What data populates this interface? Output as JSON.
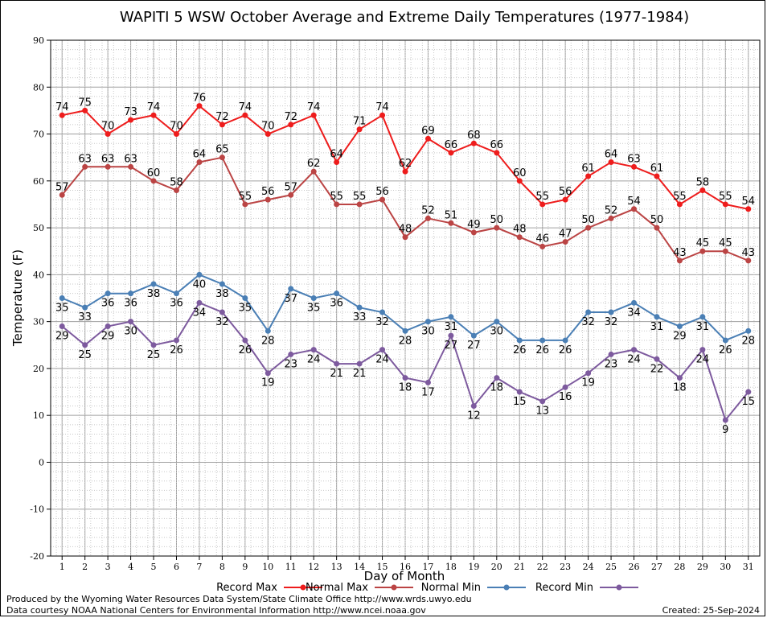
{
  "chart_data": {
    "type": "line",
    "title": "WAPITI 5 WSW October Average and Extreme Daily Temperatures (1977-1984)",
    "xlabel": "Day of Month",
    "ylabel": "Temperature (F)",
    "ylim": [
      -20,
      90
    ],
    "yticks": [
      -20,
      -10,
      0,
      10,
      20,
      30,
      40,
      50,
      60,
      70,
      80,
      90
    ],
    "x": [
      1,
      2,
      3,
      4,
      5,
      6,
      7,
      8,
      9,
      10,
      11,
      12,
      13,
      14,
      15,
      16,
      17,
      18,
      19,
      20,
      21,
      22,
      23,
      24,
      25,
      26,
      27,
      28,
      29,
      30,
      31
    ],
    "grid": true,
    "legend_position": "bottom",
    "series": [
      {
        "name": "Record Max",
        "color": "#ee1c1c",
        "label_pos": "above",
        "values": [
          74,
          75,
          70,
          73,
          74,
          70,
          76,
          72,
          74,
          70,
          72,
          74,
          64,
          71,
          74,
          62,
          69,
          66,
          68,
          66,
          60,
          55,
          56,
          61,
          64,
          63,
          61,
          55,
          58,
          55,
          54
        ]
      },
      {
        "name": "Normal Max",
        "color": "#bb4444",
        "label_pos": "above",
        "values": [
          57,
          63,
          63,
          63,
          60,
          58,
          64,
          65,
          55,
          56,
          57,
          62,
          55,
          55,
          56,
          48,
          52,
          51,
          49,
          50,
          48,
          46,
          47,
          50,
          52,
          54,
          50,
          43,
          45,
          45,
          43
        ]
      },
      {
        "name": "Normal Min",
        "color": "#4a7fb5",
        "label_pos": "below",
        "values": [
          35,
          33,
          36,
          36,
          38,
          36,
          40,
          38,
          35,
          28,
          37,
          35,
          36,
          33,
          32,
          28,
          30,
          31,
          27,
          30,
          26,
          26,
          26,
          32,
          32,
          34,
          31,
          29,
          31,
          26,
          28
        ]
      },
      {
        "name": "Record Min",
        "color": "#7d5a9e",
        "label_pos": "below",
        "values": [
          29,
          25,
          29,
          30,
          25,
          26,
          34,
          32,
          26,
          19,
          23,
          24,
          21,
          21,
          24,
          18,
          17,
          27,
          12,
          18,
          15,
          13,
          16,
          19,
          23,
          24,
          22,
          18,
          24,
          9,
          15
        ]
      }
    ]
  },
  "footer": {
    "line1": "Produced by the Wyoming Water Resources Data System/State Climate Office http://www.wrds.uwyo.edu",
    "line2": "Data courtesy NOAA National Centers for Environmental Information http://www.ncei.noaa.gov",
    "created": "Created:  25-Sep-2024"
  }
}
